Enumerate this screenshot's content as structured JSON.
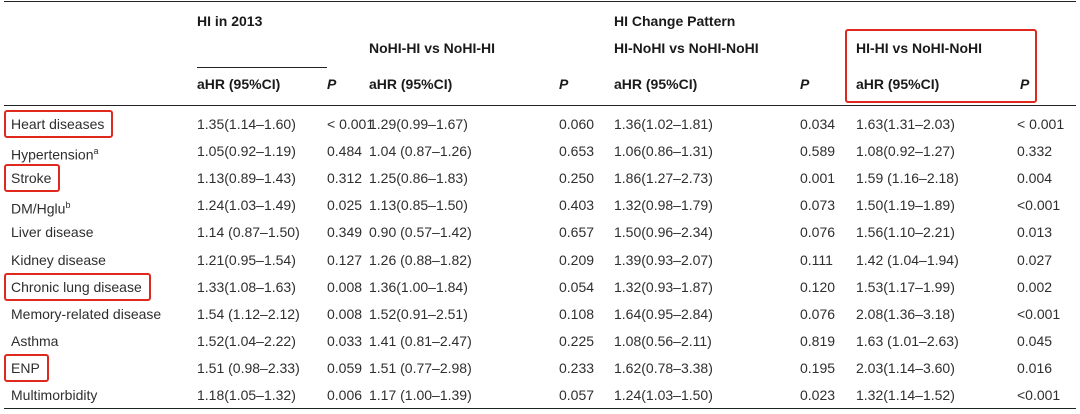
{
  "headers": {
    "group1": "HI in 2013",
    "group2": "HI Change Pattern",
    "sub_nohi": "NoHI-HI vs NoHI-HI",
    "sub_hinohi": "HI-NoHI vs NoHI-NoHI",
    "sub_hihi": "HI-HI vs NoHI-NoHI",
    "ahr": "aHR (95%CI)",
    "p": "P"
  },
  "rows": [
    {
      "label": "Heart diseases",
      "sup": "",
      "c1": "1.35(1.14–1.60)",
      "p1": "< 0.001",
      "c2": "1.29(0.99–1.67)",
      "p2": "0.060",
      "c3": "1.36(1.02–1.81)",
      "p3": "0.034",
      "c4": "1.63(1.31–2.03)",
      "p4": "< 0.001"
    },
    {
      "label": "Hypertension",
      "sup": "a",
      "c1": "1.05(0.92–1.19)",
      "p1": "0.484",
      "c2": "1.04 (0.87–1.26)",
      "p2": "0.653",
      "c3": "1.06(0.86–1.31)",
      "p3": "0.589",
      "c4": "1.08(0.92–1.27)",
      "p4": "0.332"
    },
    {
      "label": "Stroke",
      "sup": "",
      "c1": "1.13(0.89–1.43)",
      "p1": "0.312",
      "c2": "1.25(0.86–1.83)",
      "p2": "0.250",
      "c3": "1.86(1.27–2.73)",
      "p3": "0.001",
      "c4": "1.59 (1.16–2.18)",
      "p4": "0.004"
    },
    {
      "label": "DM/Hglu",
      "sup": "b",
      "c1": "1.24(1.03–1.49)",
      "p1": "0.025",
      "c2": "1.13(0.85–1.50)",
      "p2": "0.403",
      "c3": "1.32(0.98–1.79)",
      "p3": "0.073",
      "c4": "1.50(1.19–1.89)",
      "p4": "<0.001"
    },
    {
      "label": "Liver disease",
      "sup": "",
      "c1": "1.14 (0.87–1.50)",
      "p1": "0.349",
      "c2": "0.90 (0.57–1.42)",
      "p2": "0.657",
      "c3": "1.50(0.96–2.34)",
      "p3": "0.076",
      "c4": "1.56(1.10–2.21)",
      "p4": "0.013"
    },
    {
      "label": "Kidney disease",
      "sup": "",
      "c1": "1.21(0.95–1.54)",
      "p1": "0.127",
      "c2": "1.26 (0.88–1.82)",
      "p2": "0.209",
      "c3": "1.39(0.93–2.07)",
      "p3": "0.111",
      "c4": "1.42 (1.04–1.94)",
      "p4": "0.027"
    },
    {
      "label": "Chronic lung disease",
      "sup": "",
      "c1": "1.33(1.08–1.63)",
      "p1": "0.008",
      "c2": "1.36(1.00–1.84)",
      "p2": "0.054",
      "c3": "1.32(0.93–1.87)",
      "p3": "0.120",
      "c4": "1.53(1.17–1.99)",
      "p4": "0.002"
    },
    {
      "label": "Memory-related disease",
      "sup": "",
      "c1": "1.54 (1.12–2.12)",
      "p1": "0.008",
      "c2": "1.52(0.91–2.51)",
      "p2": "0.108",
      "c3": "1.64(0.95–2.84)",
      "p3": "0.076",
      "c4": "2.08(1.36–3.18)",
      "p4": "<0.001"
    },
    {
      "label": "Asthma",
      "sup": "",
      "c1": "1.52(1.04–2.22)",
      "p1": "0.033",
      "c2": "1.41 (0.81–2.47)",
      "p2": "0.225",
      "c3": "1.08(0.56–2.11)",
      "p3": "0.819",
      "c4": "1.63 (1.01–2.63)",
      "p4": "0.045"
    },
    {
      "label": "ENP",
      "sup": "",
      "c1": "1.51 (0.98–2.33)",
      "p1": "0.059",
      "c2": "1.51 (0.77–2.98)",
      "p2": "0.233",
      "c3": "1.62(0.78–3.38)",
      "p3": "0.195",
      "c4": "2.03(1.14–3.60)",
      "p4": "0.016"
    },
    {
      "label": "Multimorbidity",
      "sup": "",
      "c1": "1.18(1.05–1.32)",
      "p1": "0.006",
      "c2": "1.17 (1.00–1.39)",
      "p2": "0.057",
      "c3": "1.24(1.03–1.50)",
      "p3": "0.023",
      "c4": "1.32(1.14–1.52)",
      "p4": "<0.001"
    }
  ],
  "highlight_color": "#e0291d"
}
